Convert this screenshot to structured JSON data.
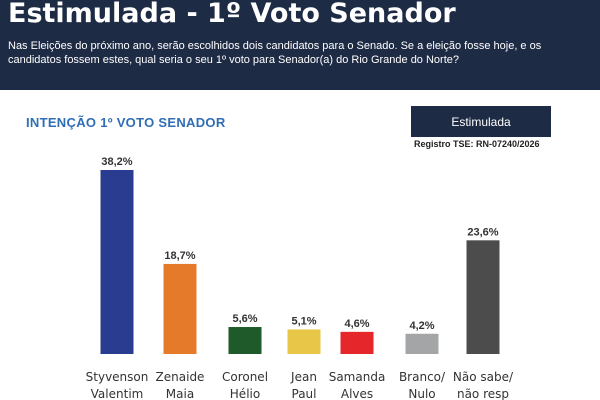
{
  "header": {
    "title": "Estimulada - 1º Voto Senador",
    "question": "Nas Eleições do próximo ano, serão escolhidos dois candidatos para o Senado. Se a eleição fosse hoje, e os candidatos fossem estes, qual seria o seu 1º voto para Senador(a) do Rio Grande do Norte?"
  },
  "chart_header": {
    "subtitle": "INTENÇÃO  1º VOTO SENADOR",
    "badge": "Estimulada",
    "registro": "Registro TSE: RN-07240/2026"
  },
  "chart_data": {
    "type": "bar",
    "title": "INTENÇÃO  1º VOTO SENADOR",
    "categories": [
      [
        "Styvenson",
        "Valentim"
      ],
      [
        "Zenaide",
        "Maia"
      ],
      [
        "Coronel",
        "Hélio"
      ],
      [
        "Jean",
        "Paul"
      ],
      [
        "Samanda",
        "Alves"
      ],
      [
        "Branco/",
        "Nulo"
      ],
      [
        "Não sabe/",
        "não resp"
      ]
    ],
    "values": [
      38.2,
      18.7,
      5.6,
      5.1,
      4.6,
      4.2,
      23.6
    ],
    "value_labels": [
      "38,2%",
      "18,7%",
      "5,6%",
      "5,1%",
      "4,6%",
      "4,2%",
      "23,6%"
    ],
    "colors": [
      "#2a3c8f",
      "#e57a2b",
      "#1e5a2a",
      "#e8c647",
      "#e5262b",
      "#a3a5a6",
      "#4c4c4c"
    ],
    "ylim": [
      0,
      40
    ],
    "grid": false,
    "legend": "none"
  }
}
